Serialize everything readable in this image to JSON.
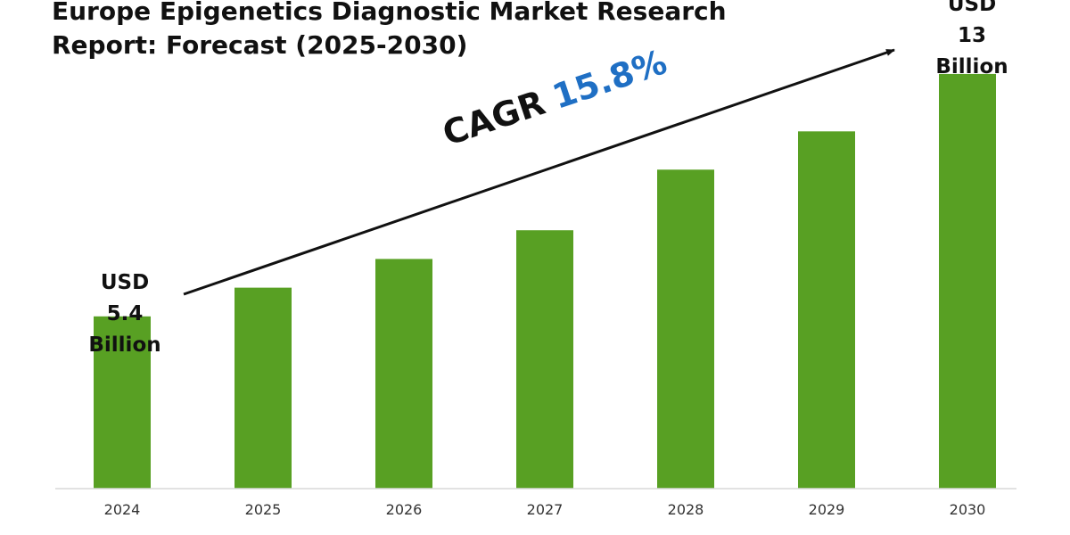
{
  "title_line1": "Europe Epigenetics Diagnostic Market Research",
  "title_line2": "Report: Forecast (2025-2030)",
  "cagr": {
    "label": "CAGR",
    "value": "15.8%"
  },
  "callouts": {
    "start": [
      "USD",
      "5.4",
      "Billion"
    ],
    "end": [
      "USD",
      "13",
      "Billion"
    ]
  },
  "colors": {
    "bar": "#58a023",
    "cagr_value": "#1f6fc4",
    "text": "#111111",
    "axis": "#d9d9d9"
  },
  "chart_data": {
    "type": "bar",
    "title": "Europe Epigenetics Diagnostic Market Research Report: Forecast (2025-2030)",
    "categories": [
      "2024",
      "2025",
      "2026",
      "2027",
      "2028",
      "2029",
      "2030"
    ],
    "values": [
      5.4,
      6.3,
      7.2,
      8.1,
      10.0,
      11.2,
      13.0
    ],
    "ylim": [
      0,
      14.2
    ],
    "grid": false
  }
}
